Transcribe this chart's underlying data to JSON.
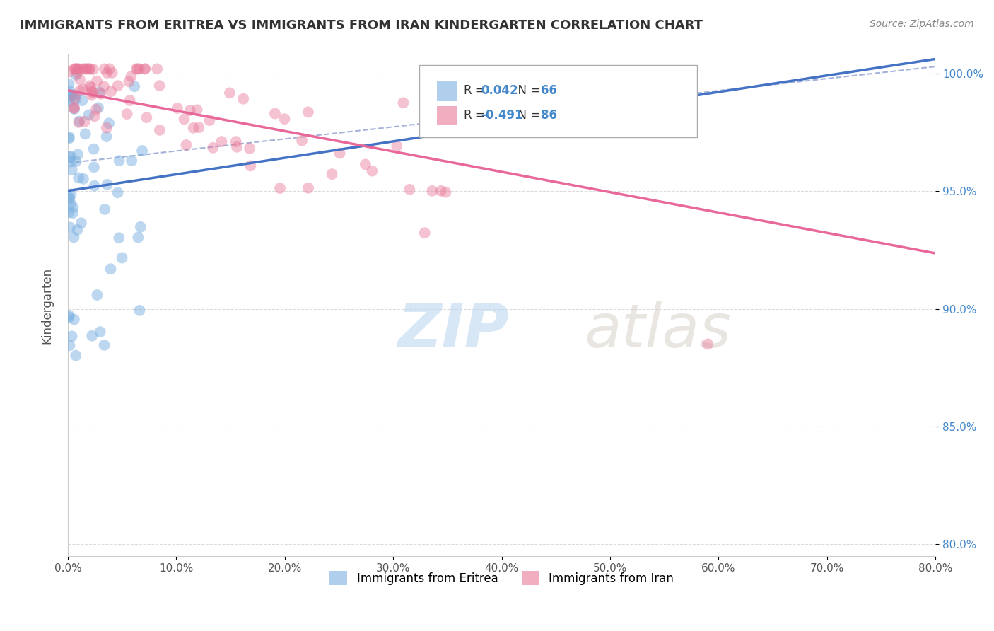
{
  "title": "IMMIGRANTS FROM ERITREA VS IMMIGRANTS FROM IRAN KINDERGARTEN CORRELATION CHART",
  "source": "Source: ZipAtlas.com",
  "ylabel": "Kindergarten",
  "xlim": [
    0.0,
    0.8
  ],
  "ylim": [
    0.795,
    1.008
  ],
  "xtick_labels": [
    "0.0%",
    "10.0%",
    "20.0%",
    "30.0%",
    "40.0%",
    "50.0%",
    "60.0%",
    "70.0%",
    "80.0%"
  ],
  "xtick_vals": [
    0.0,
    0.1,
    0.2,
    0.3,
    0.4,
    0.5,
    0.6,
    0.7,
    0.8
  ],
  "ytick_labels": [
    "80.0%",
    "85.0%",
    "90.0%",
    "95.0%",
    "100.0%"
  ],
  "ytick_vals": [
    0.8,
    0.85,
    0.9,
    0.95,
    1.0
  ],
  "R_eritrea": 0.042,
  "N_eritrea": 66,
  "R_iran": -0.491,
  "N_iran": 86,
  "color_eritrea": "#7ab0e0",
  "color_iran": "#e87898",
  "trendline_eritrea_color": "#4472c4",
  "trendline_iran_color": "#e8689a",
  "dashed_line_color": "#8899cc",
  "watermark_zip": "ZIP",
  "watermark_atlas": "atlas",
  "background_color": "#ffffff",
  "grid_color": "#cccccc",
  "legend_label_eritrea": "Immigrants from Eritrea",
  "legend_label_iran": "Immigrants from Iran"
}
